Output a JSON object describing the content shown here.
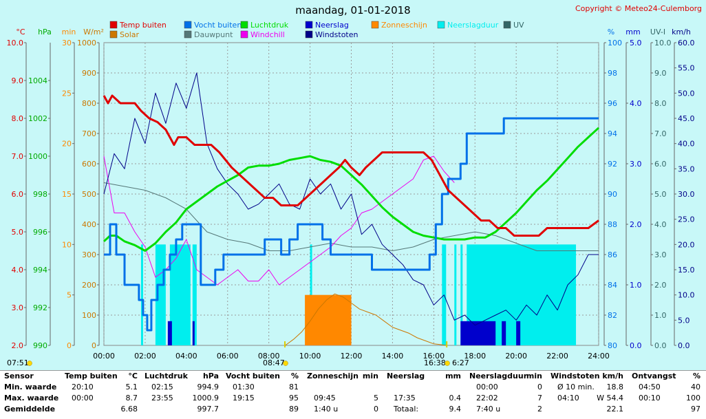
{
  "title": "maandag, 01-01-2018",
  "copyright": "Copyright © Meteo24-Culemborg",
  "colors": {
    "bg": "#c8f8f8",
    "plot": "#c8f8f8",
    "grid": "#9a9a9a",
    "temp": "#e00000",
    "vocht": "#0070e8",
    "luchtdruk": "#00dd00",
    "neerslag": "#0000cc",
    "zonneschijn": "#ff8800",
    "neerslagduur": "#00eeee",
    "uv": "#336666",
    "solar": "#cc7700",
    "dauwpunt": "#557777",
    "windchill": "#ee00ee",
    "windstoten": "#000088"
  },
  "legend": [
    {
      "label": "Temp buiten",
      "color": "#e00000"
    },
    {
      "label": "Vocht buiten",
      "color": "#0070e8"
    },
    {
      "label": "Luchtdruk",
      "color": "#00dd00"
    },
    {
      "label": "Neerslag",
      "color": "#0000cc"
    },
    {
      "label": "Zonneschijn",
      "color": "#ff8800"
    },
    {
      "label": "Neerslagduur",
      "color": "#00eeee"
    },
    {
      "label": "UV",
      "color": "#336666"
    },
    {
      "label": "Solar",
      "color": "#cc7700"
    },
    {
      "label": "Dauwpunt",
      "color": "#557777"
    },
    {
      "label": "Windchill",
      "color": "#ee00ee"
    },
    {
      "label": "Windstoten",
      "color": "#000088"
    }
  ],
  "axes": {
    "left": [
      {
        "unit": "°C",
        "color": "#e00000",
        "ticks": [
          "10.0",
          "9.0",
          "8.0",
          "7.0",
          "6.0",
          "5.0",
          "4.0",
          "3.0",
          "2.0"
        ]
      },
      {
        "unit": "hPa",
        "color": "#00aa00",
        "ticks": [
          "1004",
          "1002",
          "1000",
          "998",
          "996",
          "994",
          "992",
          "990"
        ]
      },
      {
        "unit": "min",
        "color": "#ff8800",
        "ticks": [
          "30",
          "25",
          "20",
          "15",
          "10",
          "5",
          "0"
        ]
      },
      {
        "unit": "W/m²",
        "color": "#cc7700",
        "ticks": [
          "1000",
          "900",
          "800",
          "700",
          "600",
          "500",
          "400",
          "300",
          "200",
          "100",
          "0"
        ]
      }
    ],
    "right": [
      {
        "unit": "%",
        "color": "#0070e8",
        "ticks": [
          "100",
          "98",
          "96",
          "94",
          "92",
          "90",
          "88",
          "86",
          "84",
          "82",
          "80"
        ]
      },
      {
        "unit": "mm",
        "color": "#0000cc",
        "ticks": [
          "5.0",
          "4.0",
          "3.0",
          "2.0",
          "1.0",
          "0.0"
        ]
      },
      {
        "unit": "UV-I",
        "color": "#336666",
        "ticks": [
          "10.0",
          "9.0",
          "8.0",
          "7.0",
          "6.0",
          "5.0",
          "4.0",
          "3.0",
          "2.0",
          "1.0",
          "0.0"
        ]
      },
      {
        "unit": "km/h",
        "color": "#000088",
        "ticks": [
          "60.0",
          "55.0",
          "50.0",
          "45.0",
          "40.0",
          "35.0",
          "30.0",
          "25.0",
          "20.0",
          "15.0",
          "10.0",
          "5.0",
          "0.0"
        ]
      }
    ],
    "x_ticks": [
      "00:00",
      "02:00",
      "04:00",
      "06:00",
      "08:00",
      "10:00",
      "12:00",
      "14:00",
      "16:00",
      "18:00",
      "20:00",
      "22:00",
      "24:00"
    ]
  },
  "sun": {
    "rise_left": "07:51",
    "rise": "08:47",
    "set": "16:38",
    "daylength": "6:27"
  },
  "chart_data": {
    "type": "line",
    "x_unit": "hour",
    "xlim": [
      0,
      24
    ],
    "series": [
      {
        "name": "Temp buiten",
        "unit": "°C",
        "ylim": [
          2,
          10
        ],
        "x": [
          0,
          0.2,
          0.4,
          0.8,
          1.5,
          1.8,
          2.2,
          2.6,
          3.0,
          3.4,
          3.6,
          4.0,
          4.4,
          4.8,
          5.2,
          5.6,
          5.9,
          6.2,
          6.6,
          7.0,
          7.4,
          7.8,
          8.2,
          8.6,
          9.0,
          9.4,
          9.8,
          10.2,
          10.6,
          11.0,
          11.4,
          11.7,
          12.0,
          12.4,
          12.7,
          13.1,
          13.5,
          13.9,
          14.3,
          14.7,
          15.1,
          15.5,
          15.9,
          16.3,
          16.7,
          17.1,
          17.5,
          17.9,
          18.3,
          18.7,
          19.1,
          19.5,
          19.9,
          20.3,
          20.7,
          21.1,
          21.5,
          21.9,
          22.3,
          22.7,
          23.1,
          23.5,
          24.0
        ],
        "values": [
          8.6,
          8.4,
          8.6,
          8.4,
          8.4,
          8.2,
          8.0,
          7.9,
          7.7,
          7.3,
          7.5,
          7.5,
          7.3,
          7.3,
          7.3,
          7.1,
          6.9,
          6.7,
          6.5,
          6.3,
          6.1,
          5.9,
          5.9,
          5.7,
          5.7,
          5.7,
          5.9,
          6.1,
          6.3,
          6.5,
          6.7,
          6.9,
          6.7,
          6.5,
          6.7,
          6.9,
          7.1,
          7.1,
          7.1,
          7.1,
          7.1,
          7.1,
          6.9,
          6.5,
          6.1,
          5.9,
          5.7,
          5.5,
          5.3,
          5.3,
          5.1,
          5.1,
          4.9,
          4.9,
          4.9,
          4.9,
          5.1,
          5.1,
          5.1,
          5.1,
          5.1,
          5.1,
          5.3
        ]
      },
      {
        "name": "Vocht buiten",
        "unit": "%",
        "ylim": [
          80,
          100
        ],
        "x": [
          0,
          0.3,
          0.6,
          1.0,
          1.5,
          1.7,
          1.9,
          2.1,
          2.3,
          2.6,
          2.9,
          3.2,
          3.5,
          3.8,
          4.1,
          4.4,
          4.7,
          5.0,
          5.4,
          5.8,
          6.2,
          6.6,
          7.0,
          7.4,
          7.8,
          8.2,
          8.6,
          9.0,
          9.4,
          9.8,
          10.2,
          10.6,
          11.0,
          11.4,
          11.8,
          12.2,
          12.6,
          13.0,
          13.4,
          13.8,
          14.2,
          14.6,
          15.0,
          15.4,
          15.8,
          16.1,
          16.4,
          16.7,
          17.0,
          17.3,
          17.6,
          17.9,
          18.2,
          18.6,
          19.0,
          19.4,
          19.8,
          20.2,
          20.6,
          21.0,
          21.4,
          21.8,
          22.2,
          22.6,
          23.0,
          23.4,
          24.0
        ],
        "values": [
          86,
          88,
          86,
          84,
          84,
          83,
          82,
          81,
          83,
          84,
          85,
          86,
          87,
          88,
          88,
          88,
          84,
          84,
          85,
          86,
          86,
          86,
          86,
          86,
          87,
          87,
          86,
          87,
          88,
          88,
          88,
          87,
          86,
          86,
          86,
          86,
          86,
          85,
          85,
          85,
          85,
          85,
          85,
          85,
          86,
          88,
          90,
          91,
          91,
          92,
          94,
          94,
          94,
          94,
          94,
          95,
          95,
          95,
          95,
          95,
          95,
          95,
          95,
          95,
          95,
          95,
          95
        ]
      },
      {
        "name": "Luchtdruk",
        "unit": "hPa",
        "ylim": [
          990,
          1006
        ],
        "x": [
          0,
          0.3,
          0.6,
          1.0,
          1.5,
          2.0,
          2.5,
          3.0,
          3.5,
          4.0,
          4.5,
          5.0,
          5.5,
          6.0,
          6.5,
          7.0,
          7.5,
          8.0,
          8.5,
          9.0,
          9.5,
          10.0,
          10.5,
          11.0,
          11.5,
          12.0,
          12.5,
          13.0,
          13.5,
          14.0,
          14.5,
          15.0,
          15.5,
          16.0,
          16.5,
          17.0,
          17.5,
          18.0,
          18.5,
          19.0,
          19.5,
          20.0,
          20.5,
          21.0,
          21.5,
          22.0,
          22.5,
          23.0,
          23.5,
          24.0
        ],
        "values": [
          995.5,
          995.8,
          995.8,
          995.5,
          995.3,
          995.0,
          995.4,
          996.0,
          996.5,
          997.2,
          997.6,
          998.0,
          998.4,
          998.7,
          999.0,
          999.4,
          999.5,
          999.5,
          999.6,
          999.8,
          999.9,
          1000.0,
          999.8,
          999.7,
          999.5,
          999.0,
          998.5,
          997.9,
          997.3,
          996.8,
          996.4,
          996.0,
          995.8,
          995.7,
          995.6,
          995.6,
          995.6,
          995.7,
          995.7,
          996.0,
          996.5,
          997.0,
          997.6,
          998.2,
          998.7,
          999.3,
          999.9,
          1000.5,
          1001.0,
          1001.5
        ]
      },
      {
        "name": "Windstoten",
        "unit": "km/h",
        "ylim": [
          0,
          60
        ],
        "x": [
          0,
          0.5,
          1.0,
          1.5,
          2.0,
          2.5,
          3.0,
          3.5,
          4.0,
          4.5,
          5.0,
          5.5,
          6.0,
          6.5,
          7.0,
          7.5,
          8.0,
          8.5,
          9.0,
          9.5,
          10.0,
          10.5,
          11.0,
          11.5,
          12.0,
          12.5,
          13.0,
          13.5,
          14.0,
          14.5,
          15.0,
          15.5,
          16.0,
          16.5,
          17.0,
          17.5,
          18.0,
          18.5,
          19.0,
          19.5,
          20.0,
          20.5,
          21.0,
          21.5,
          22.0,
          22.5,
          23.0,
          23.5,
          24.0
        ],
        "values": [
          30,
          38,
          35,
          45,
          40,
          50,
          44,
          52,
          47,
          54,
          40,
          35,
          32,
          30,
          27,
          28,
          30,
          32,
          28,
          27,
          33,
          30,
          32,
          27,
          30,
          22,
          24,
          20,
          18,
          16,
          13,
          12,
          8,
          10,
          5,
          6,
          4,
          5,
          6,
          7,
          5,
          8,
          6,
          10,
          7,
          12,
          14,
          18,
          18
        ]
      },
      {
        "name": "Windchill",
        "unit": "°C",
        "ylim": [
          2,
          10
        ],
        "x": [
          0,
          0.5,
          1.0,
          1.5,
          2.0,
          2.5,
          3.0,
          3.5,
          4.0,
          4.5,
          5.0,
          5.5,
          6.0,
          6.5,
          7.0,
          7.5,
          8.0,
          8.5,
          9.0,
          9.5,
          10.0,
          10.5,
          11.0,
          11.5,
          12.0,
          12.5,
          13.0,
          13.5,
          14.0,
          14.5,
          15.0,
          15.5,
          16.0,
          16.5,
          17.0
        ],
        "values": [
          7.0,
          5.5,
          5.5,
          5.0,
          4.6,
          3.8,
          4.0,
          4.3,
          4.8,
          4.0,
          3.8,
          3.6,
          3.8,
          4.0,
          3.7,
          3.7,
          4.0,
          3.6,
          3.8,
          4.0,
          4.2,
          4.4,
          4.6,
          4.9,
          5.1,
          5.5,
          5.6,
          5.8,
          6.0,
          6.2,
          6.4,
          6.9,
          7.0,
          6.6,
          6.3
        ]
      },
      {
        "name": "Dauwpunt",
        "unit": "°C",
        "ylim": [
          2,
          10
        ],
        "x": [
          0,
          1.0,
          2.0,
          3.0,
          4.0,
          5.0,
          6.0,
          7.0,
          8.0,
          9.0,
          10.0,
          11.0,
          12.0,
          13.0,
          14.0,
          15.0,
          16.0,
          17.0,
          18.0,
          19.0,
          20.0,
          21.0,
          22.0,
          23.0,
          24.0
        ],
        "values": [
          6.3,
          6.2,
          6.1,
          5.9,
          5.6,
          5.0,
          4.8,
          4.7,
          4.5,
          4.5,
          4.6,
          4.7,
          4.6,
          4.6,
          4.5,
          4.6,
          4.8,
          4.9,
          5.0,
          4.9,
          4.7,
          4.5,
          4.5,
          4.5,
          4.5
        ]
      },
      {
        "name": "Solar",
        "unit": "W/m²",
        "ylim": [
          0,
          1000
        ],
        "x": [
          8.8,
          9.2,
          9.6,
          10.0,
          10.4,
          10.8,
          11.2,
          11.6,
          12.0,
          12.4,
          12.8,
          13.2,
          13.6,
          14.0,
          14.4,
          14.8,
          15.2,
          15.6,
          16.0,
          16.4,
          16.6
        ],
        "values": [
          0,
          20,
          45,
          80,
          120,
          150,
          170,
          160,
          140,
          120,
          110,
          100,
          80,
          60,
          50,
          40,
          25,
          15,
          5,
          2,
          0
        ]
      },
      {
        "name": "Zonneschijn",
        "unit": "min/10min",
        "ylim": [
          0,
          30
        ],
        "x_start": 9.75,
        "x_end": 12.0,
        "values": [
          5
        ]
      },
      {
        "name": "Neerslagduur",
        "unit": "min",
        "ylim": [
          0,
          30
        ],
        "intervals": [
          [
            1.8,
            1.9
          ],
          [
            2.5,
            3.0
          ],
          [
            3.2,
            4.2
          ],
          [
            4.3,
            4.5
          ],
          [
            10.0,
            10.1
          ],
          [
            16.4,
            16.6
          ],
          [
            17.0,
            17.1
          ],
          [
            17.3,
            17.4
          ],
          [
            17.6,
            22.9
          ]
        ]
      },
      {
        "name": "Neerslag",
        "unit": "mm",
        "ylim": [
          0,
          5
        ],
        "intervals": [
          [
            3.1,
            3.3
          ],
          [
            4.3,
            4.4
          ],
          [
            17.3,
            19.0
          ],
          [
            19.3,
            19.5
          ],
          [
            20.0,
            20.2
          ]
        ]
      }
    ]
  },
  "summary": {
    "columns": [
      {
        "header": "Sensor",
        "rows": [
          "Min. waarde",
          "Max. waarde",
          "Gemiddelde"
        ]
      },
      {
        "header": "Temp buiten",
        "unit": "°C",
        "rows": [
          [
            "20:10",
            "5.1"
          ],
          [
            "00:00",
            "8.7"
          ],
          [
            "",
            "6.68"
          ]
        ]
      },
      {
        "header": "Luchtdruk",
        "unit": "hPa",
        "rows": [
          [
            "02:15",
            "994.9"
          ],
          [
            "23:55",
            "1000.9"
          ],
          [
            "",
            "997.7"
          ]
        ]
      },
      {
        "header": "Vocht buiten",
        "unit": "%",
        "rows": [
          [
            "01:30",
            "81"
          ],
          [
            "19:15",
            "95"
          ],
          [
            "",
            "89"
          ]
        ]
      },
      {
        "header": "Zonneschijn",
        "unit": "min",
        "rows": [
          [
            "",
            ""
          ],
          [
            "09:45",
            "5"
          ],
          [
            "1:40 u",
            "0"
          ]
        ]
      },
      {
        "header": "Neerslag",
        "unit": "mm",
        "rows": [
          [
            "",
            ""
          ],
          [
            "17:35",
            "0.4"
          ],
          [
            "Totaal:",
            "9.4"
          ]
        ]
      },
      {
        "header": "Neerslagduur",
        "unit": "min",
        "rows": [
          [
            "00:00",
            "0"
          ],
          [
            "22:02",
            "7"
          ],
          [
            "7:40 u",
            "2"
          ]
        ]
      },
      {
        "header": "Windstoten",
        "unit": "km/h",
        "rows": [
          [
            "Ø 10 min.",
            "18.8"
          ],
          [
            "04:10",
            "W 54.4"
          ],
          [
            "",
            "22.1"
          ]
        ]
      },
      {
        "header": "Ontvangst",
        "unit": "%",
        "rows": [
          [
            "04:50",
            "40"
          ],
          [
            "00:10",
            "100"
          ],
          [
            "",
            "97"
          ]
        ]
      }
    ]
  }
}
